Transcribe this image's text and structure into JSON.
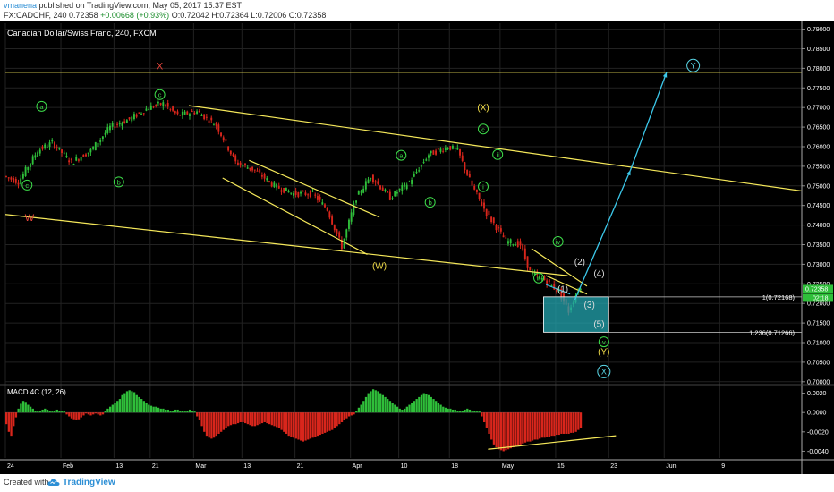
{
  "header": {
    "user": "vmanena",
    "published": "published on TradingView.com, May 05, 2017 15:37 EST",
    "symbol_line": "FX:CADCHF, 240",
    "last": "0.72358",
    "change": "+0.00668 (+0.93%)",
    "ohlc": "O:0.72042 H:0.72364 L:0.72006 C:0.72358"
  },
  "footer": {
    "created_with": "Created with",
    "brand": "TradingView"
  },
  "chart_data": [
    {
      "type": "candlestick",
      "title": "Canadian Dollar/Swiss Franc, 240, FXCM",
      "ylim": [
        0.6995,
        0.7915
      ],
      "y_ticks": [
        "0.79000",
        "0.78500",
        "0.78000",
        "0.77500",
        "0.77000",
        "0.76500",
        "0.76000",
        "0.75500",
        "0.75000",
        "0.74500",
        "0.74000",
        "0.73500",
        "0.73000",
        "0.72500",
        "0.72000",
        "0.71500",
        "0.71000",
        "0.70500",
        "0.70000"
      ],
      "x_ticks": [
        "24",
        "Feb",
        "13",
        "21",
        "Mar",
        "13",
        "21",
        "Apr",
        "10",
        "18",
        "May",
        "15",
        "23",
        "Jun",
        "9"
      ],
      "last_price_label": "0.72358",
      "countdown_label": "02:18",
      "series": [
        {
          "name": "price path (approx)",
          "points": [
            [
              0,
              0.7525
            ],
            [
              6,
              0.751
            ],
            [
              14,
              0.759
            ],
            [
              20,
              0.761
            ],
            [
              28,
              0.756
            ],
            [
              36,
              0.759
            ],
            [
              44,
              0.765
            ],
            [
              52,
              0.767
            ],
            [
              60,
              0.77
            ],
            [
              66,
              0.771
            ],
            [
              72,
              0.768
            ],
            [
              80,
              0.769
            ],
            [
              88,
              0.7655
            ],
            [
              96,
              0.756
            ],
            [
              104,
              0.754
            ],
            [
              112,
              0.75
            ],
            [
              120,
              0.748
            ],
            [
              128,
              0.748
            ],
            [
              134,
              0.744
            ],
            [
              140,
              0.7345
            ],
            [
              146,
              0.747
            ],
            [
              152,
              0.7525
            ],
            [
              160,
              0.747
            ],
            [
              168,
              0.751
            ],
            [
              176,
              0.758
            ],
            [
              184,
              0.76
            ],
            [
              188,
              0.759
            ],
            [
              194,
              0.75
            ],
            [
              200,
              0.743
            ],
            [
              208,
              0.736
            ],
            [
              214,
              0.735
            ],
            [
              218,
              0.728
            ],
            [
              224,
              0.726
            ],
            [
              230,
              0.723
            ],
            [
              234,
              0.718
            ],
            [
              238,
              0.7236
            ]
          ]
        }
      ],
      "lines": [
        {
          "name": "top horizontal",
          "from": [
            0,
            0.779
          ],
          "to": [
            330,
            0.779
          ]
        },
        {
          "name": "upper channel",
          "from": [
            76,
            0.7705
          ],
          "to": [
            330,
            0.7487
          ]
        },
        {
          "name": "lower channel",
          "from": [
            0,
            0.7427
          ],
          "to": [
            233,
            0.7271
          ]
        },
        {
          "name": "flag top",
          "from": [
            101,
            0.7565
          ],
          "to": [
            155,
            0.742
          ]
        },
        {
          "name": "flag bottom",
          "from": [
            90,
            0.752
          ],
          "to": [
            150,
            0.7325
          ]
        },
        {
          "name": "wedge top",
          "from": [
            218,
            0.734
          ],
          "to": [
            241,
            0.7244
          ]
        },
        {
          "name": "wedge bottom",
          "from": [
            224,
            0.7271
          ],
          "to": [
            241,
            0.7224
          ]
        }
      ],
      "projection": [
        [
          236,
          0.721
        ],
        [
          259,
          0.754
        ],
        [
          274,
          0.779
        ]
      ],
      "target_zone": {
        "from": 0.71266,
        "to": 0.72168,
        "labels": [
          "1(0.72168)",
          "1.236(0.71266)"
        ]
      },
      "annotations": [
        {
          "text": "X",
          "x": 64,
          "y": 0.7807,
          "color": "#e8453c",
          "style": "plain"
        },
        {
          "text": "W",
          "x": 10,
          "y": 0.742,
          "color": "#e8453c",
          "style": "plain"
        },
        {
          "text": "c",
          "x": 9,
          "y": 0.7502,
          "color": "#3ddc4a",
          "style": "circle"
        },
        {
          "text": "a",
          "x": 15,
          "y": 0.7703,
          "color": "#3ddc4a",
          "style": "circle"
        },
        {
          "text": "b",
          "x": 47,
          "y": 0.751,
          "color": "#3ddc4a",
          "style": "circle"
        },
        {
          "text": "c",
          "x": 64,
          "y": 0.7733,
          "color": "#3ddc4a",
          "style": "circle"
        },
        {
          "text": "(W)",
          "x": 155,
          "y": 0.7298,
          "color": "#f5e04a",
          "style": "plain"
        },
        {
          "text": "a",
          "x": 164,
          "y": 0.7578,
          "color": "#3ddc4a",
          "style": "circle"
        },
        {
          "text": "b",
          "x": 176,
          "y": 0.7458,
          "color": "#3ddc4a",
          "style": "circle"
        },
        {
          "text": "(X)",
          "x": 198,
          "y": 0.7702,
          "color": "#f5e04a",
          "style": "plain"
        },
        {
          "text": "c",
          "x": 198,
          "y": 0.7645,
          "color": "#3ddc4a",
          "style": "circle"
        },
        {
          "text": "ii",
          "x": 204,
          "y": 0.758,
          "color": "#3ddc4a",
          "style": "circle"
        },
        {
          "text": "i",
          "x": 198,
          "y": 0.7498,
          "color": "#3ddc4a",
          "style": "circle"
        },
        {
          "text": "iv",
          "x": 229,
          "y": 0.7358,
          "color": "#3ddc4a",
          "style": "circle"
        },
        {
          "text": "iii",
          "x": 221,
          "y": 0.7265,
          "color": "#3ddc4a",
          "style": "circle"
        },
        {
          "text": "(2)",
          "x": 238,
          "y": 0.7308,
          "color": "#dddddd",
          "style": "plain"
        },
        {
          "text": "(1)",
          "x": 231,
          "y": 0.7238,
          "color": "#dddddd",
          "style": "plain"
        },
        {
          "text": "(4)",
          "x": 246,
          "y": 0.7278,
          "color": "#dddddd",
          "style": "plain"
        },
        {
          "text": "(3)",
          "x": 242,
          "y": 0.7198,
          "color": "#dddddd",
          "style": "plain"
        },
        {
          "text": "(5)",
          "x": 246,
          "y": 0.7149,
          "color": "#dddddd",
          "style": "plain"
        },
        {
          "text": "v",
          "x": 248,
          "y": 0.7102,
          "color": "#3ddc4a",
          "style": "circle"
        },
        {
          "text": "(Y)",
          "x": 248,
          "y": 0.7078,
          "color": "#f5e04a",
          "style": "plain"
        },
        {
          "text": "X",
          "x": 248,
          "y": 0.7026,
          "color": "#5ad8e8",
          "style": "circle"
        },
        {
          "text": "Y",
          "x": 285,
          "y": 0.7807,
          "color": "#5ad8e8",
          "style": "circle"
        }
      ]
    },
    {
      "type": "histogram",
      "title": "MACD 4C (12, 26)",
      "ylim": [
        -0.0047,
        0.0027
      ],
      "y_ticks": [
        "0.0020",
        "0.0000",
        "-0.0020",
        "-0.0040"
      ],
      "x_range": [
        0,
        238
      ],
      "segments": [
        {
          "from": 0,
          "to": 4,
          "values": [
            -0.0012,
            -0.002,
            -0.0024,
            -0.0014,
            -0.0005
          ]
        },
        {
          "from": 5,
          "to": 24,
          "values": [
            0.0004,
            0.0009,
            0.0012,
            0.0011,
            0.0008,
            0.0006,
            0.0004,
            0.0002,
            0.0001,
            0.0002,
            0.0003,
            0.0004,
            0.0003,
            0.0002,
            0.0001,
            0.0002,
            0.0003,
            0.0002,
            0.0001,
            0.0001
          ]
        },
        {
          "from": 25,
          "to": 40,
          "values": [
            -0.0002,
            -0.0004,
            -0.0006,
            -0.0007,
            -0.0008,
            -0.0007,
            -0.0005,
            -0.0003,
            -0.0001,
            -0.0002,
            -0.0003,
            -0.0002,
            -0.0001,
            -0.0002,
            -0.0003,
            -0.0002
          ]
        },
        {
          "from": 41,
          "to": 78,
          "values": [
            0.0002,
            0.0004,
            0.0006,
            0.0008,
            0.001,
            0.0012,
            0.0014,
            0.0018,
            0.002,
            0.0022,
            0.0023,
            0.0022,
            0.0021,
            0.0018,
            0.0016,
            0.0014,
            0.0012,
            0.001,
            0.0008,
            0.0007,
            0.0006,
            0.0006,
            0.0005,
            0.0004,
            0.0004,
            0.0003,
            0.0003,
            0.0002,
            0.0002,
            0.0003,
            0.0003,
            0.0002,
            0.0002,
            0.0001,
            0.0002,
            0.0003,
            0.0002,
            0.0001
          ]
        },
        {
          "from": 79,
          "to": 144,
          "values": [
            -0.0004,
            -0.0008,
            -0.0014,
            -0.002,
            -0.0024,
            -0.0026,
            -0.0027,
            -0.0026,
            -0.0024,
            -0.0022,
            -0.002,
            -0.0018,
            -0.0016,
            -0.0014,
            -0.0013,
            -0.0012,
            -0.0012,
            -0.0011,
            -0.001,
            -0.001,
            -0.0011,
            -0.0012,
            -0.0013,
            -0.0014,
            -0.0014,
            -0.0013,
            -0.0012,
            -0.0011,
            -0.001,
            -0.0011,
            -0.0012,
            -0.0013,
            -0.0014,
            -0.0015,
            -0.0016,
            -0.0018,
            -0.002,
            -0.0022,
            -0.0024,
            -0.0025,
            -0.0026,
            -0.0027,
            -0.0028,
            -0.0029,
            -0.003,
            -0.0029,
            -0.0028,
            -0.0027,
            -0.0026,
            -0.0025,
            -0.0024,
            -0.0023,
            -0.0022,
            -0.0021,
            -0.002,
            -0.0019,
            -0.0018,
            -0.0016,
            -0.0014,
            -0.0012,
            -0.001,
            -0.0008,
            -0.0006,
            -0.0004,
            -0.0003,
            -0.0002
          ]
        },
        {
          "from": 145,
          "to": 196,
          "values": [
            0.0002,
            0.0005,
            0.0008,
            0.0012,
            0.0016,
            0.002,
            0.0022,
            0.0024,
            0.0023,
            0.0022,
            0.002,
            0.0018,
            0.0016,
            0.0014,
            0.0012,
            0.001,
            0.0008,
            0.0006,
            0.0004,
            0.0003,
            0.0004,
            0.0006,
            0.0008,
            0.001,
            0.0012,
            0.0014,
            0.0016,
            0.0018,
            0.002,
            0.0019,
            0.0018,
            0.0016,
            0.0014,
            0.0012,
            0.001,
            0.0008,
            0.0006,
            0.0005,
            0.0004,
            0.0004,
            0.0003,
            0.0003,
            0.0002,
            0.0002,
            0.0002,
            0.0003,
            0.0004,
            0.0003,
            0.0002,
            0.0002,
            0.0001,
            0.0001
          ]
        },
        {
          "from": 197,
          "to": 238,
          "values": [
            -0.0004,
            -0.001,
            -0.0016,
            -0.0022,
            -0.0028,
            -0.0033,
            -0.0036,
            -0.0038,
            -0.0039,
            -0.004,
            -0.0039,
            -0.0038,
            -0.0037,
            -0.0036,
            -0.0035,
            -0.0034,
            -0.0033,
            -0.0032,
            -0.0031,
            -0.003,
            -0.003,
            -0.0029,
            -0.0028,
            -0.0028,
            -0.0027,
            -0.0026,
            -0.0026,
            -0.0025,
            -0.0025,
            -0.0024,
            -0.0024,
            -0.0023,
            -0.0023,
            -0.0022,
            -0.0022,
            -0.0022,
            -0.0022,
            -0.0021,
            -0.0021,
            -0.002,
            -0.0018,
            -0.0016
          ]
        }
      ],
      "trendline": [
        [
          200,
          -0.0038
        ],
        [
          253,
          -0.0024
        ]
      ]
    }
  ],
  "colors": {
    "up": "#2fbf3a",
    "down": "#d9261c",
    "lines": "#f5e85a",
    "projection": "#3cc8ea",
    "zone": "#23a6b0",
    "grid": "#222222",
    "axis_text": "#ffffff"
  }
}
